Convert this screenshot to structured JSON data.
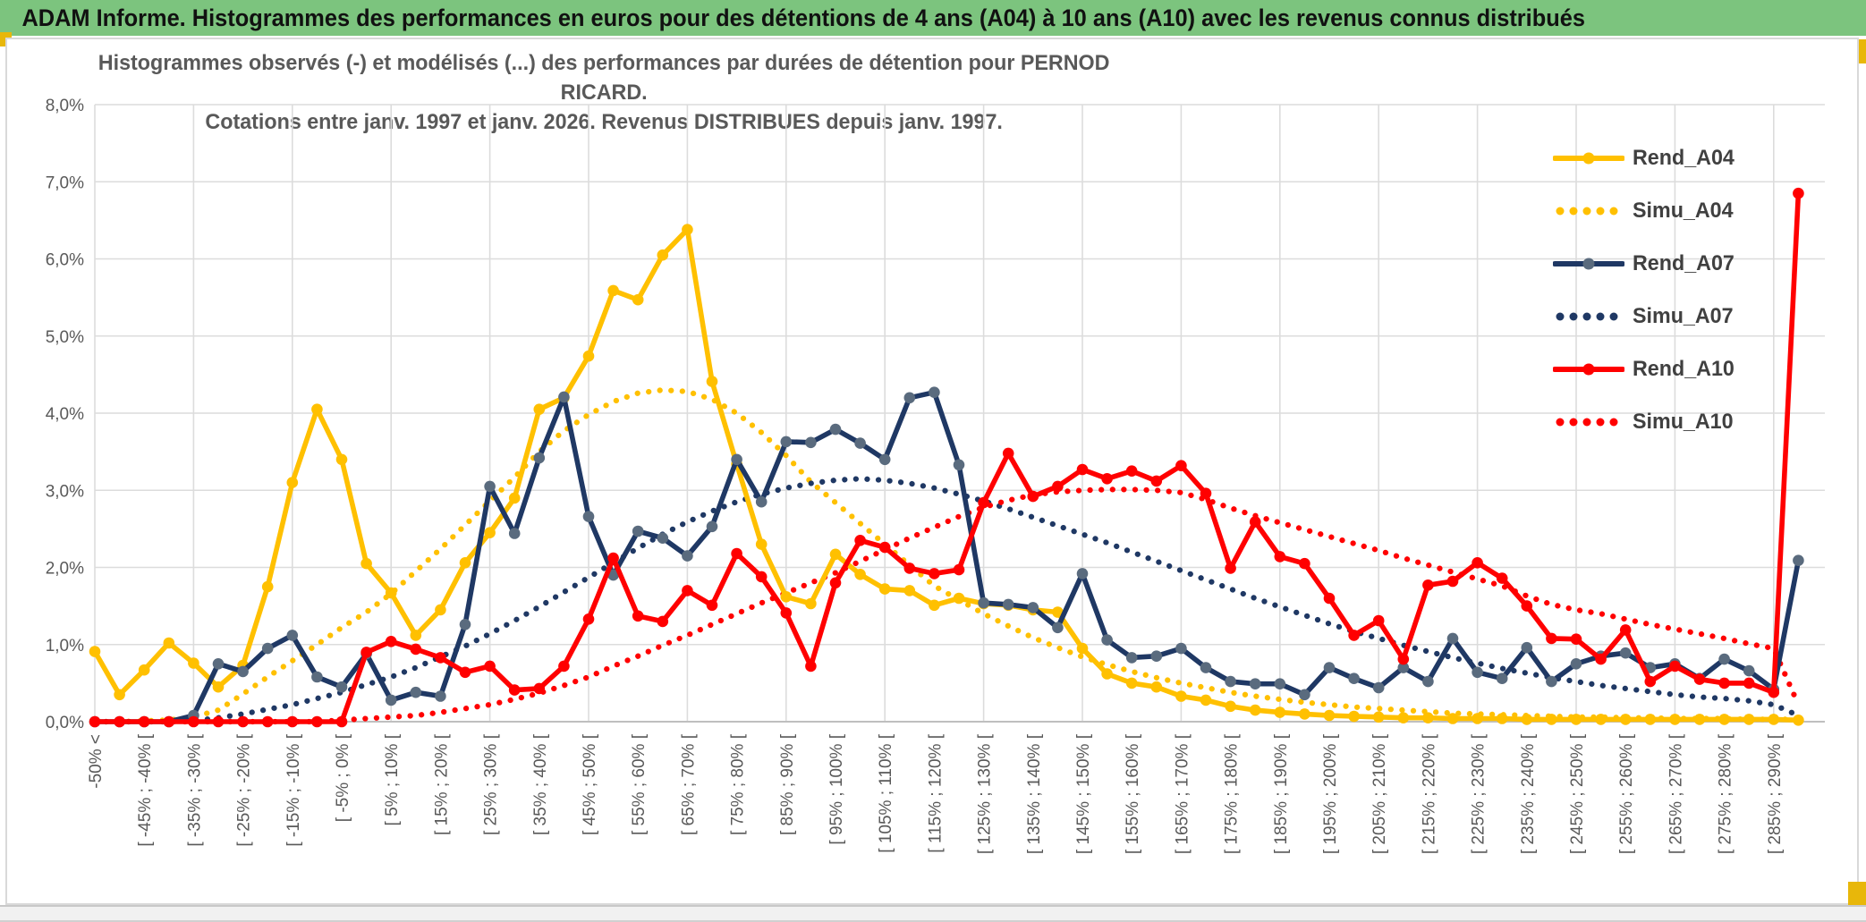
{
  "window": {
    "title": "ADAM Informe. Histogrammes des performances en euros pour des détentions de 4 ans (A04) à 10 ans (A10) avec les revenus connus distribués"
  },
  "chart": {
    "title_line1": "Histogrammes observés (-) et modélisés (...) des performances par durées de détention pour PERNOD RICARD.",
    "title_line2": "Cotations entre janv. 1997 et janv. 2026. Revenus DISTRIBUES depuis janv. 1997."
  },
  "colors": {
    "title_bar_green": "#7CC47E",
    "gold_accent": "#E8B70A",
    "grid": "#DCDCDC",
    "axis_line": "#BFBFBF",
    "axis_text": "#595959",
    "legend_text": "#404040"
  },
  "chart_data": {
    "type": "line",
    "title": "Histogrammes observés (-) et modélisés (...) des performances par durées de détention pour PERNOD RICARD. Cotations entre janv. 1997 et janv. 2026. Revenus DISTRIBUES depuis janv. 1997.",
    "xlabel": "",
    "ylabel": "",
    "ylim": [
      0,
      8
    ],
    "grid": true,
    "legend_position": "right-inside",
    "ytick_labels": [
      "0,0%",
      "1,0%",
      "2,0%",
      "3,0%",
      "4,0%",
      "5,0%",
      "6,0%",
      "7,0%",
      "8,0%"
    ],
    "categories": [
      "-50% <",
      "",
      "[ -45% ; -40% [",
      "",
      "[ -35% ; -30% [",
      "",
      "[ -25% ; -20% [",
      "",
      "[ -15% ; -10% [",
      "",
      "[ -5% ; 0% [",
      "",
      "[ 5% ; 10% [",
      "",
      "[ 15% ; 20% [",
      "",
      "[ 25% ; 30% [",
      "",
      "[ 35% ; 40% [",
      "",
      "[ 45% ; 50% [",
      "",
      "[ 55% ; 60% [",
      "",
      "[ 65% ; 70% [",
      "",
      "[ 75% ; 80% [",
      "",
      "[ 85% ; 90% [",
      "",
      "[ 95% ; 100% [",
      "",
      "[ 105% ; 110% [",
      "",
      "[ 115% ; 120% [",
      "",
      "[ 125% ; 130% [",
      "",
      "[ 135% ; 140% [",
      "",
      "[ 145% ; 150% [",
      "",
      "[ 155% ; 160% [",
      "",
      "[ 165% ; 170% [",
      "",
      "[ 175% ; 180% [",
      "",
      "[ 185% ; 190% [",
      "",
      "[ 195% ; 200% [",
      "",
      "[ 205% ; 210% [",
      "",
      "[ 215% ; 220% [",
      "",
      "[ 225% ; 230% [",
      "",
      "[ 235% ; 240% [",
      "",
      "[ 245% ; 250% [",
      "",
      "[ 255% ; 260% [",
      "",
      "[ 265% ; 270% [",
      "",
      "[ 275% ; 280% [",
      "",
      "[ 285% ; 290% [",
      ""
    ],
    "series": [
      {
        "name": "Rend_A04",
        "style": "solid",
        "color": "#FFC000",
        "marker_color": "#FFC000",
        "values": [
          0.91,
          0.35,
          0.67,
          1.02,
          0.76,
          0.45,
          0.73,
          1.75,
          3.1,
          4.05,
          3.4,
          2.05,
          1.67,
          1.12,
          1.45,
          2.06,
          2.45,
          2.9,
          4.05,
          4.2,
          4.74,
          5.59,
          5.47,
          6.05,
          6.38,
          4.41,
          3.34,
          2.3,
          1.62,
          1.53,
          2.17,
          1.91,
          1.72,
          1.7,
          1.51,
          1.6,
          1.53,
          1.51,
          1.45,
          1.42,
          0.95,
          0.62,
          0.5,
          0.45,
          0.33,
          0.28,
          0.2,
          0.15,
          0.12,
          0.1,
          0.08,
          0.07,
          0.06,
          0.05,
          0.05,
          0.04,
          0.04,
          0.04,
          0.03,
          0.03,
          0.03,
          0.03,
          0.03,
          0.03,
          0.03,
          0.03,
          0.03,
          0.03,
          0.03,
          0.02
        ]
      },
      {
        "name": "Simu_A04",
        "style": "dotted",
        "color": "#FFC000",
        "marker_color": null,
        "values": [
          0,
          0,
          0.01,
          0.02,
          0.06,
          0.15,
          0.36,
          0.58,
          0.79,
          1.0,
          1.22,
          1.42,
          1.66,
          1.95,
          2.24,
          2.55,
          2.86,
          3.17,
          3.5,
          3.77,
          3.98,
          4.15,
          4.26,
          4.3,
          4.28,
          4.18,
          4.0,
          3.75,
          3.45,
          3.11,
          2.84,
          2.57,
          2.3,
          2.03,
          1.76,
          1.58,
          1.4,
          1.24,
          1.09,
          0.96,
          0.84,
          0.74,
          0.65,
          0.57,
          0.5,
          0.44,
          0.38,
          0.33,
          0.29,
          0.25,
          0.22,
          0.19,
          0.17,
          0.15,
          0.13,
          0.11,
          0.1,
          0.09,
          0.08,
          0.07,
          0.06,
          0.06,
          0.05,
          0.05,
          0.04,
          0.04,
          0.04,
          0.03,
          0.03,
          0.03
        ]
      },
      {
        "name": "Rend_A07",
        "style": "solid",
        "color": "#1F3864",
        "marker_color": "#5A6B7E",
        "values": [
          0,
          0,
          0,
          0,
          0.08,
          0.75,
          0.65,
          0.95,
          1.12,
          0.58,
          0.45,
          0.88,
          0.28,
          0.38,
          0.33,
          1.26,
          3.05,
          2.44,
          3.42,
          4.21,
          2.66,
          1.9,
          2.47,
          2.38,
          2.15,
          2.53,
          3.4,
          2.85,
          3.63,
          3.62,
          3.79,
          3.61,
          3.4,
          4.2,
          4.27,
          3.33,
          1.54,
          1.52,
          1.48,
          1.22,
          1.92,
          1.06,
          0.83,
          0.85,
          0.95,
          0.7,
          0.52,
          0.49,
          0.49,
          0.35,
          0.7,
          0.56,
          0.44,
          0.7,
          0.52,
          1.08,
          0.64,
          0.56,
          0.96,
          0.52,
          0.75,
          0.85,
          0.89,
          0.7,
          0.75,
          0.56,
          0.81,
          0.66,
          0.42,
          2.09
        ]
      },
      {
        "name": "Simu_A07",
        "style": "dotted",
        "color": "#1F3864",
        "marker_color": null,
        "values": [
          0,
          0,
          0,
          0,
          0.01,
          0.05,
          0.1,
          0.16,
          0.22,
          0.3,
          0.38,
          0.48,
          0.58,
          0.7,
          0.84,
          0.98,
          1.14,
          1.31,
          1.49,
          1.68,
          1.87,
          2.06,
          2.25,
          2.43,
          2.59,
          2.73,
          2.85,
          2.95,
          3.03,
          3.09,
          3.13,
          3.15,
          3.13,
          3.09,
          3.03,
          2.95,
          2.86,
          2.76,
          2.65,
          2.54,
          2.43,
          2.32,
          2.2,
          2.08,
          1.96,
          1.84,
          1.72,
          1.6,
          1.49,
          1.38,
          1.27,
          1.17,
          1.08,
          0.99,
          0.91,
          0.83,
          0.76,
          0.69,
          0.63,
          0.57,
          0.52,
          0.47,
          0.43,
          0.39,
          0.35,
          0.32,
          0.3,
          0.27,
          0.22,
          0.08
        ]
      },
      {
        "name": "Rend_A10",
        "style": "solid",
        "color": "#FF0000",
        "marker_color": "#FF0000",
        "values": [
          0,
          0,
          0,
          0,
          0,
          0,
          0,
          0,
          0,
          0,
          0,
          0.9,
          1.04,
          0.94,
          0.83,
          0.64,
          0.72,
          0.41,
          0.43,
          0.72,
          1.33,
          2.12,
          1.37,
          1.3,
          1.7,
          1.51,
          2.18,
          1.88,
          1.41,
          0.72,
          1.8,
          2.35,
          2.26,
          1.99,
          1.92,
          1.97,
          2.84,
          3.48,
          2.92,
          3.05,
          3.27,
          3.15,
          3.25,
          3.12,
          3.32,
          2.96,
          1.99,
          2.59,
          2.14,
          2.05,
          1.6,
          1.12,
          1.31,
          0.81,
          1.77,
          1.82,
          2.06,
          1.86,
          1.5,
          1.08,
          1.07,
          0.81,
          1.19,
          0.52,
          0.72,
          0.55,
          0.5,
          0.5,
          0.38,
          6.85
        ]
      },
      {
        "name": "Simu_A10",
        "style": "dotted",
        "color": "#FF0000",
        "marker_color": null,
        "values": [
          0,
          0,
          0,
          0,
          0,
          0,
          0,
          0,
          0,
          0,
          0.02,
          0.04,
          0.06,
          0.08,
          0.12,
          0.17,
          0.22,
          0.29,
          0.37,
          0.47,
          0.58,
          0.72,
          0.85,
          0.99,
          1.12,
          1.26,
          1.4,
          1.54,
          1.67,
          1.8,
          1.93,
          2.08,
          2.23,
          2.38,
          2.52,
          2.66,
          2.78,
          2.87,
          2.94,
          2.98,
          3.0,
          3.01,
          3.01,
          3.0,
          2.97,
          2.88,
          2.77,
          2.67,
          2.58,
          2.49,
          2.4,
          2.31,
          2.22,
          2.12,
          2.03,
          1.94,
          1.85,
          1.76,
          1.63,
          1.52,
          1.45,
          1.4,
          1.33,
          1.26,
          1.2,
          1.14,
          1.08,
          1.01,
          0.95,
          0.22
        ]
      }
    ]
  }
}
